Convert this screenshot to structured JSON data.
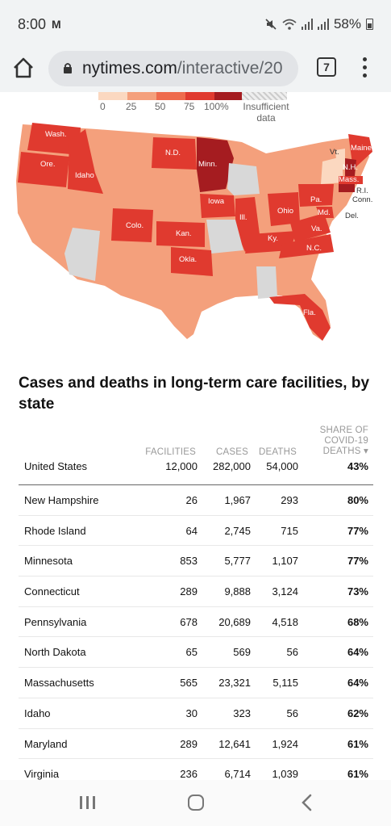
{
  "status_bar": {
    "time": "8:00",
    "notification": "M",
    "battery": "58%"
  },
  "browser": {
    "url_domain": "nytimes.com",
    "url_path": "/interactive/20",
    "tab_count": "7"
  },
  "legend": {
    "ticks": [
      "0",
      "25",
      "50",
      "75",
      "100%"
    ],
    "no_data_label_1": "Insufficient",
    "no_data_label_2": "data",
    "colors": [
      "#fbd8c0",
      "#f4a07c",
      "#ee6b4d",
      "#e03a2f",
      "#a51c20"
    ]
  },
  "map": {
    "state_labels": [
      "Wash.",
      "Ore.",
      "Idaho",
      "N.D.",
      "Minn.",
      "Vt.",
      "Maine",
      "N.H.",
      "Mass.",
      "R.I.",
      "Conn.",
      "Del.",
      "Iowa",
      "Ohio",
      "Pa.",
      "Md.",
      "Ill.",
      "Colo.",
      "Kan.",
      "Ky.",
      "Va.",
      "N.C.",
      "Okla.",
      "Fla."
    ]
  },
  "table": {
    "title": "Cases and deaths in long-term care facilities, by state",
    "headers": {
      "facilities": "FACILITIES",
      "cases": "CASES",
      "deaths": "DEATHS",
      "share": "SHARE OF COVID-19 DEATHS ▾"
    },
    "total": {
      "state": "United States",
      "facilities": "12,000",
      "cases": "282,000",
      "deaths": "54,000",
      "share": "43%"
    },
    "rows": [
      {
        "state": "New Hampshire",
        "facilities": "26",
        "cases": "1,967",
        "deaths": "293",
        "share": "80%"
      },
      {
        "state": "Rhode Island",
        "facilities": "64",
        "cases": "2,745",
        "deaths": "715",
        "share": "77%"
      },
      {
        "state": "Minnesota",
        "facilities": "853",
        "cases": "5,777",
        "deaths": "1,107",
        "share": "77%"
      },
      {
        "state": "Connecticut",
        "facilities": "289",
        "cases": "9,888",
        "deaths": "3,124",
        "share": "73%"
      },
      {
        "state": "Pennsylvania",
        "facilities": "678",
        "cases": "20,689",
        "deaths": "4,518",
        "share": "68%"
      },
      {
        "state": "North Dakota",
        "facilities": "65",
        "cases": "569",
        "deaths": "56",
        "share": "64%"
      },
      {
        "state": "Massachusetts",
        "facilities": "565",
        "cases": "23,321",
        "deaths": "5,115",
        "share": "64%"
      },
      {
        "state": "Idaho",
        "facilities": "30",
        "cases": "323",
        "deaths": "56",
        "share": "62%"
      },
      {
        "state": "Maryland",
        "facilities": "289",
        "cases": "12,641",
        "deaths": "1,924",
        "share": "61%"
      },
      {
        "state": "Virginia",
        "facilities": "236",
        "cases": "6,714",
        "deaths": "1,039",
        "share": "61%"
      }
    ]
  }
}
